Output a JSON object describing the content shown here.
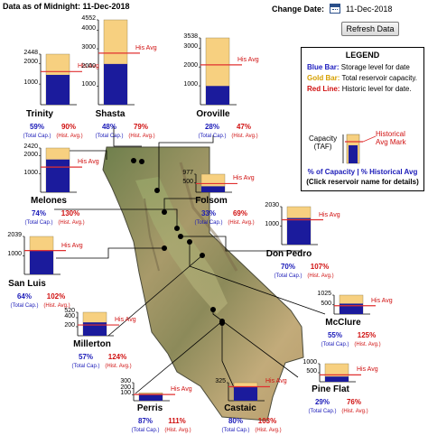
{
  "header": {
    "data_as_of": "Data as of Midnight: 11-Dec-2018",
    "change_date_label": "Change Date:",
    "change_date_value": "11-Dec-2018",
    "refresh_button": "Refresh Data"
  },
  "legend": {
    "title": "LEGEND",
    "blue_key": "Blue Bar:",
    "blue_desc": "Storage level for date",
    "gold_key": "Gold Bar:",
    "gold_desc": "Total reservoir capacity.",
    "red_key": "Red Line:",
    "red_desc": "Historic level for date.",
    "capacity_label_1": "Capacity",
    "capacity_label_2": "(TAF)",
    "avg_mark_1": "Historical",
    "avg_mark_2": "Avg Mark",
    "footer_1": "% of Capacity | % Historical Avg",
    "footer_2": "(Click reservoir name for details)"
  },
  "labels": {
    "his_avg": "His Avg",
    "total_cap": "(Total Cap.)",
    "hist_avg": "(Hist. Avg.)"
  },
  "colors": {
    "storage": "#1b1b9c",
    "capacity": "#f7d080",
    "historic_avg": "#e03030",
    "pct_capacity_text": "#1a1ab8",
    "pct_historic_text": "#d01010"
  },
  "chart_data": {
    "type": "bar",
    "units": "TAF",
    "reservoirs": [
      {
        "name": "Trinity",
        "ticks": [
          2448,
          2000,
          1000
        ],
        "capacity": 2448,
        "storage": 1444,
        "historic_avg": 1604,
        "pct_capacity": "59%",
        "pct_historic": "90%"
      },
      {
        "name": "Shasta",
        "ticks": [
          4552,
          4000,
          3000,
          2000,
          1000
        ],
        "capacity": 4552,
        "storage": 2185,
        "historic_avg": 2766,
        "pct_capacity": "48%",
        "pct_historic": "79%"
      },
      {
        "name": "Oroville",
        "ticks": [
          3538,
          3000,
          2000,
          1000
        ],
        "capacity": 3538,
        "storage": 991,
        "historic_avg": 2108,
        "pct_capacity": "28%",
        "pct_historic": "47%"
      },
      {
        "name": "Melones",
        "ticks": [
          2420,
          2000,
          1000
        ],
        "capacity": 2420,
        "storage": 1791,
        "historic_avg": 1378,
        "pct_capacity": "74%",
        "pct_historic": "130%"
      },
      {
        "name": "Folsom",
        "ticks": [
          977,
          500
        ],
        "capacity": 977,
        "storage": 322,
        "historic_avg": 467,
        "pct_capacity": "33%",
        "pct_historic": "69%"
      },
      {
        "name": "Don Pedro",
        "ticks": [
          2030,
          1000
        ],
        "capacity": 2030,
        "storage": 1421,
        "historic_avg": 1328,
        "pct_capacity": "70%",
        "pct_historic": "107%"
      },
      {
        "name": "San Luis",
        "ticks": [
          2039,
          1000
        ],
        "capacity": 2039,
        "storage": 1305,
        "historic_avg": 1279,
        "pct_capacity": "64%",
        "pct_historic": "102%"
      },
      {
        "name": "McClure",
        "ticks": [
          1025,
          500
        ],
        "capacity": 1025,
        "storage": 564,
        "historic_avg": 451,
        "pct_capacity": "55%",
        "pct_historic": "125%"
      },
      {
        "name": "Millerton",
        "ticks": [
          520,
          400,
          200
        ],
        "capacity": 520,
        "storage": 296,
        "historic_avg": 239,
        "pct_capacity": "57%",
        "pct_historic": "124%"
      },
      {
        "name": "Pine Flat",
        "ticks": [
          1000,
          500
        ],
        "capacity": 1000,
        "storage": 290,
        "historic_avg": 382,
        "pct_capacity": "29%",
        "pct_historic": "76%"
      },
      {
        "name": "Perris",
        "ticks": [
          300,
          200,
          100
        ],
        "capacity": 131,
        "storage": 114,
        "historic_avg": 103,
        "pct_capacity": "87%",
        "pct_historic": "111%"
      },
      {
        "name": "Castaic",
        "ticks": [
          325
        ],
        "capacity": 325,
        "storage": 260,
        "historic_avg": 252,
        "pct_capacity": "80%",
        "pct_historic": "103%"
      }
    ]
  }
}
